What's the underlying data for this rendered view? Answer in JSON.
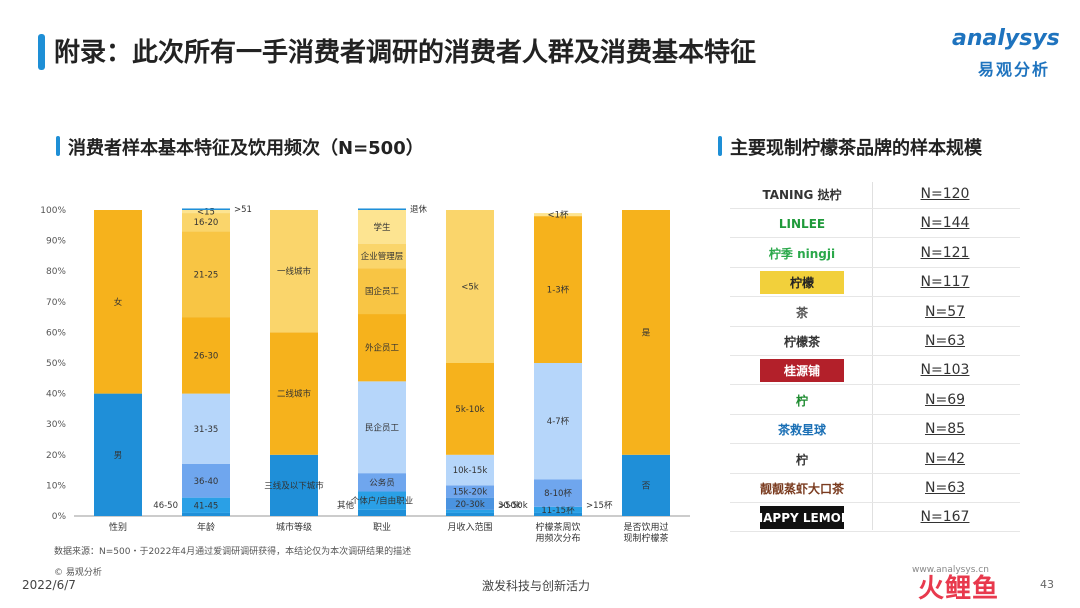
{
  "header": {
    "title": "附录：此次所有一手消费者调研的消费者人群及消费基本特征",
    "logo_main": "analysys",
    "logo_sub": "易观分析"
  },
  "left_section": {
    "title": "消费者样本基本特征及饮用频次（N=500）"
  },
  "right_section": {
    "title": "主要现制柠檬茶品牌的样本规模"
  },
  "colors": {
    "accent": "#1e8fd6",
    "seg_dark_blue": "#1f8fd8",
    "seg_mid_blue": "#6fa6ee",
    "seg_light_blue": "#b6d6fa",
    "seg_orange": "#f6b21c",
    "seg_amber": "#f8c544",
    "seg_yellow": "#fad56b",
    "seg_light_yellow": "#fde491"
  },
  "chart_data": {
    "type": "bar",
    "stacked": true,
    "percent": true,
    "y_ticks": [
      "0%",
      "10%",
      "20%",
      "30%",
      "40%",
      "50%",
      "60%",
      "70%",
      "80%",
      "90%",
      "100%"
    ],
    "ylim": [
      0,
      100
    ],
    "categories": [
      "性别",
      "年龄",
      "城市等级",
      "职业",
      "月收入范围",
      "柠檬茶周饮\n用频次分布",
      "是否饮用过\n现制柠檬茶"
    ],
    "stacks": [
      {
        "category": "性别",
        "segments": [
          {
            "label": "男",
            "value": 40,
            "color": "#1f8fd8"
          },
          {
            "label": "女",
            "value": 60,
            "color": "#f6b21c"
          }
        ]
      },
      {
        "category": "年龄",
        "segments": [
          {
            "label": "46-50",
            "value": 1,
            "color": "#1f8fd8"
          },
          {
            "label": "41-45",
            "value": 5,
            "color": "#2aa0e6"
          },
          {
            "label": "36-40",
            "value": 11,
            "color": "#6fa6ee"
          },
          {
            "label": "31-35",
            "value": 23,
            "color": "#b6d6fa"
          },
          {
            "label": "26-30",
            "value": 25,
            "color": "#f6b21c"
          },
          {
            "label": "21-25",
            "value": 28,
            "color": "#f8c544"
          },
          {
            "label": "16-20",
            "value": 6,
            "color": "#fad56b"
          },
          {
            "label": "<15",
            "value": 1,
            "color": "#fde491"
          },
          {
            "label": ">51",
            "value": 0.5,
            "color": "#1f8fd8"
          }
        ]
      },
      {
        "category": "城市等级",
        "segments": [
          {
            "label": "三线及以下城市",
            "value": 20,
            "color": "#1f8fd8"
          },
          {
            "label": "二线城市",
            "value": 40,
            "color": "#f6b21c"
          },
          {
            "label": "一线城市",
            "value": 40,
            "color": "#fad56b"
          }
        ]
      },
      {
        "category": "职业",
        "segments": [
          {
            "label": "其他",
            "value": 2,
            "color": "#1f8fd8"
          },
          {
            "label": "个体户/自由职业",
            "value": 6,
            "color": "#2aa0e6"
          },
          {
            "label": "公务员",
            "value": 6,
            "color": "#6fa6ee"
          },
          {
            "label": "民企员工",
            "value": 30,
            "color": "#b6d6fa"
          },
          {
            "label": "外企员工",
            "value": 22,
            "color": "#f6b21c"
          },
          {
            "label": "国企员工",
            "value": 15,
            "color": "#f8c544"
          },
          {
            "label": "企业管理层",
            "value": 8,
            "color": "#fad56b"
          },
          {
            "label": "学生",
            "value": 11,
            "color": "#fde491"
          },
          {
            "label": "退休",
            "value": 0.5,
            "color": "#1f8fd8"
          }
        ]
      },
      {
        "category": "月收入范围",
        "segments": [
          {
            "label": ">50k",
            "value": 1,
            "color": "#1f8fd8"
          },
          {
            "label": "30-50k",
            "value": 1,
            "color": "#2aa0e6"
          },
          {
            "label": "20-30k",
            "value": 4,
            "color": "#4a93e0"
          },
          {
            "label": "15k-20k",
            "value": 4,
            "color": "#6fa6ee"
          },
          {
            "label": "10k-15k",
            "value": 10,
            "color": "#b6d6fa"
          },
          {
            "label": "5k-10k",
            "value": 30,
            "color": "#f6b21c"
          },
          {
            "label": "<5k",
            "value": 50,
            "color": "#fad56b"
          }
        ]
      },
      {
        "category": "柠檬茶周饮用频次分布",
        "segments": [
          {
            "label": ">15杯",
            "value": 1,
            "color": "#1f8fd8"
          },
          {
            "label": "11-15杯",
            "value": 2,
            "color": "#2aa0e6"
          },
          {
            "label": "8-10杯",
            "value": 9,
            "color": "#6fa6ee"
          },
          {
            "label": "4-7杯",
            "value": 38,
            "color": "#b6d6fa"
          },
          {
            "label": "1-3杯",
            "value": 48,
            "color": "#f6b21c"
          },
          {
            "label": "<1杯",
            "value": 1,
            "color": "#fde491"
          }
        ]
      },
      {
        "category": "是否饮用过现制柠檬茶",
        "segments": [
          {
            "label": "否",
            "value": 20,
            "color": "#1f8fd8"
          },
          {
            "label": "是",
            "value": 80,
            "color": "#f6b21c"
          }
        ]
      }
    ]
  },
  "brands": [
    {
      "name": "TANING",
      "sub": "挞柠",
      "n": "N=120",
      "color": "#333333",
      "bg": "#ffffff"
    },
    {
      "name": "LINLEE",
      "n": "N=144",
      "color": "#1f9a3a",
      "bg": "#ffffff"
    },
    {
      "name": "柠季 ningji",
      "n": "N=121",
      "color": "#2aa84a",
      "bg": "#ffffff"
    },
    {
      "name": "柠檬",
      "n": "N=117",
      "color": "#222222",
      "bg": "#f2d03b"
    },
    {
      "name": "茶",
      "n": "N=57",
      "color": "#555555",
      "bg": "#ffffff"
    },
    {
      "name": "柠檬茶",
      "n": "N=63",
      "color": "#333333",
      "bg": "#ffffff"
    },
    {
      "name": "桂源铺",
      "n": "N=103",
      "color": "#ffffff",
      "bg": "#b3202a"
    },
    {
      "name": "柠",
      "n": "N=69",
      "color": "#1c8a2e",
      "bg": "#ffffff"
    },
    {
      "name": "茶救星球",
      "n": "N=85",
      "color": "#1a6fb5",
      "bg": "#ffffff"
    },
    {
      "name": "柠",
      "n": "N=42",
      "color": "#333333",
      "bg": "#ffffff"
    },
    {
      "name": "靓靓蒸虾大口茶",
      "n": "N=63",
      "color": "#7a3b1f",
      "bg": "#ffffff"
    },
    {
      "name": "HAPPY LEMON",
      "n": "N=167",
      "color": "#ffffff",
      "bg": "#111111"
    }
  ],
  "footer": {
    "note": "数据来源：N=500・于2022年4月通过爱调研调研获得，本结论仅为本次调研结果的描述",
    "copyright": "© 易观分析",
    "date": "2022/6/7",
    "slogan": "激发科技与创新活力",
    "page": "43",
    "site": "www.analysys.cn",
    "stamp": "火鲤鱼"
  }
}
